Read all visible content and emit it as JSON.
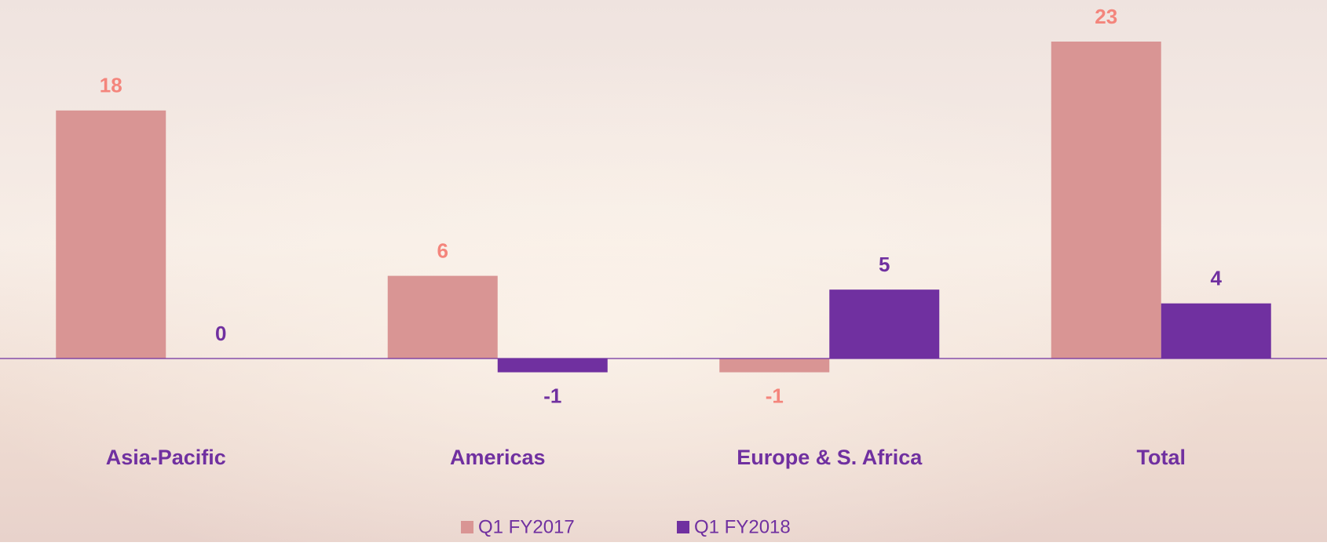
{
  "chart_data": {
    "type": "bar",
    "categories": [
      "Asia-Pacific",
      "Americas",
      "Europe & S. Africa",
      "Total"
    ],
    "series": [
      {
        "name": "Q1 FY2017",
        "color": "#d99594",
        "label_color": "#f4857c",
        "values": [
          18,
          6,
          -1,
          23
        ]
      },
      {
        "name": "Q1 FY2018",
        "color": "#7030a0",
        "label_color": "#7030a0",
        "values": [
          0,
          -1,
          5,
          4
        ]
      }
    ],
    "legend": "bottom"
  }
}
